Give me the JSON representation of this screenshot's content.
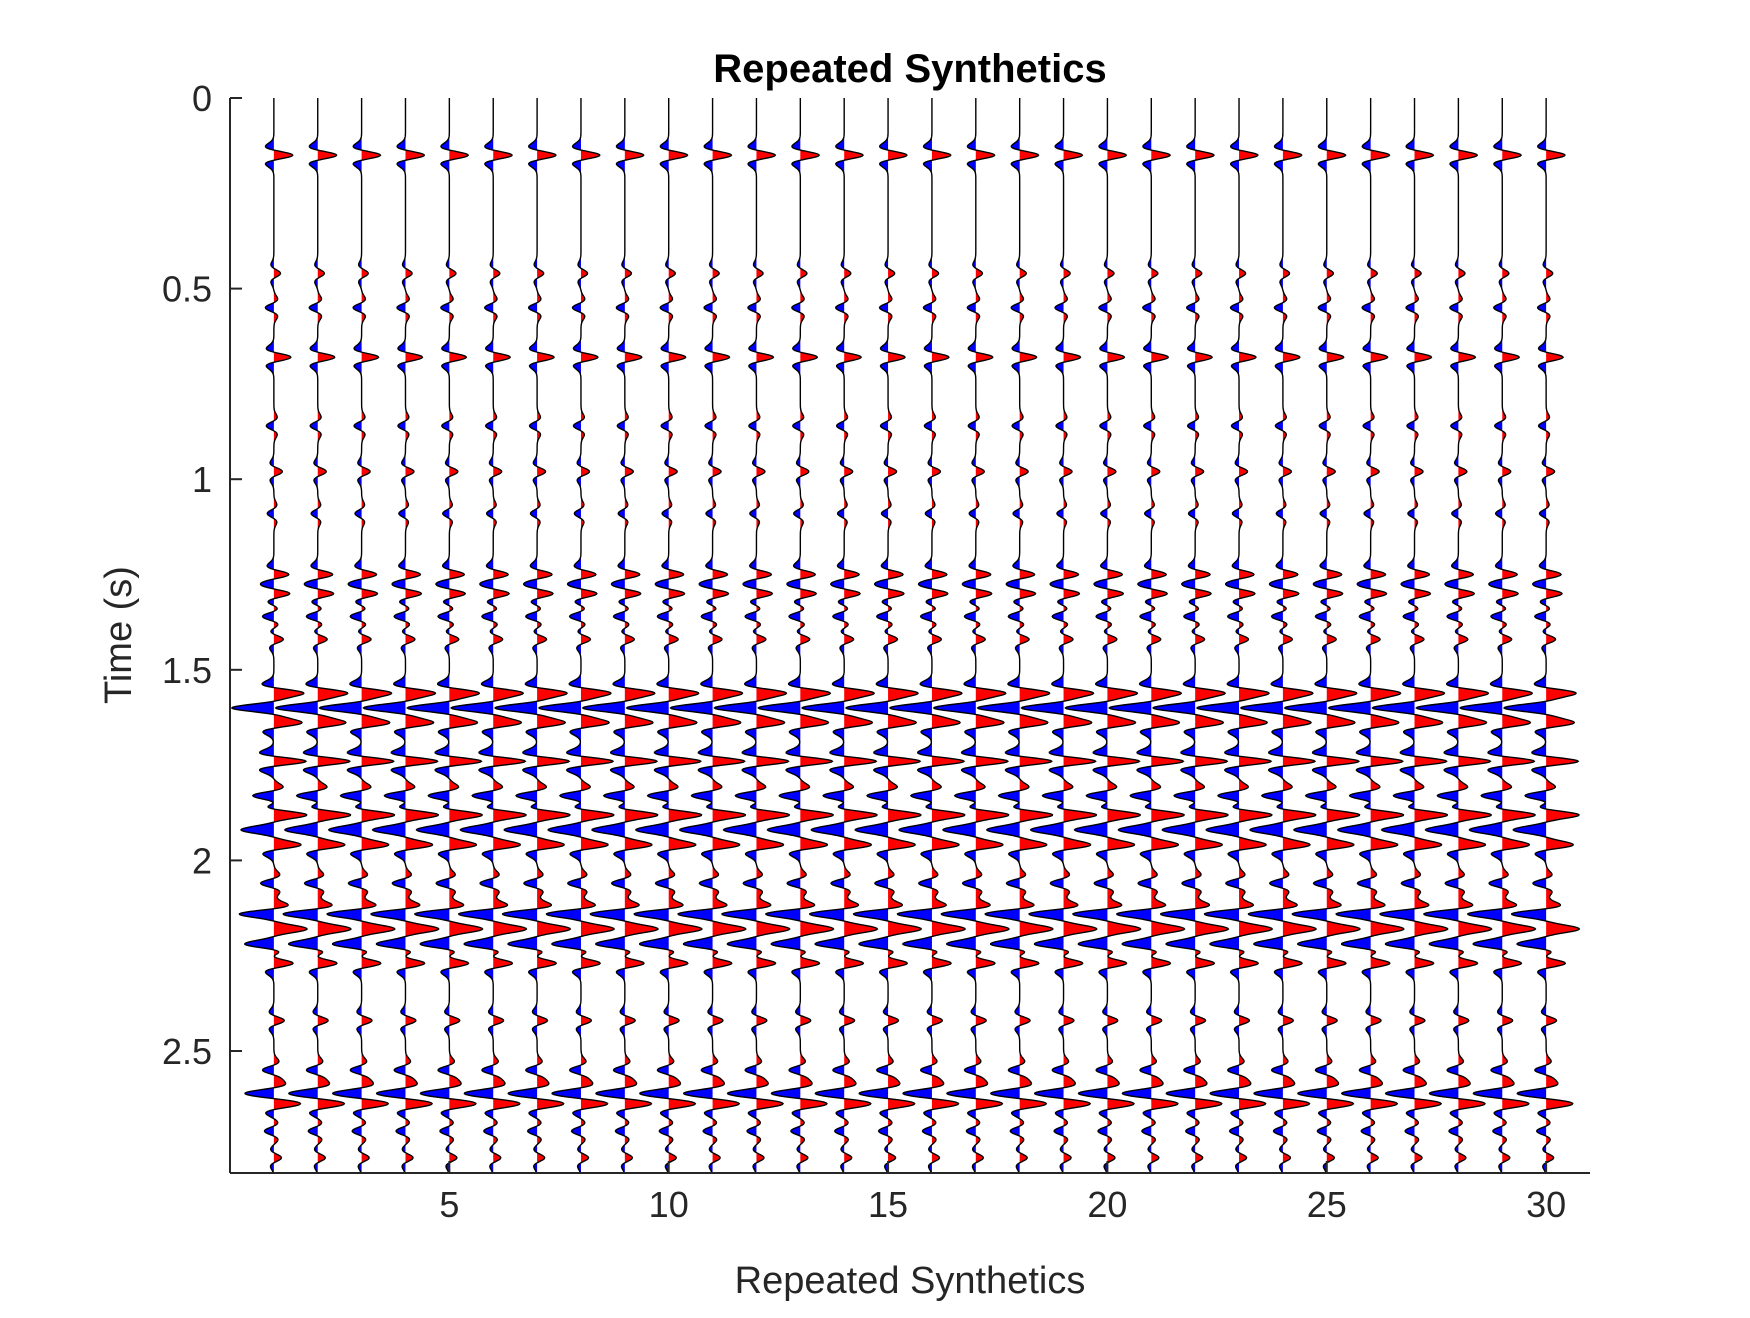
{
  "chart_data": {
    "type": "line",
    "title": "Repeated Synthetics",
    "xlabel": "Repeated Synthetics",
    "ylabel": "Time (s)",
    "xlim": [
      0,
      31
    ],
    "ylim": [
      0,
      2.82
    ],
    "y_reversed": true,
    "grid": false,
    "legend": "none",
    "x_ticks": [
      5,
      10,
      15,
      20,
      25,
      30
    ],
    "x_tick_labels": [
      "5",
      "10",
      "15",
      "20",
      "25",
      "30"
    ],
    "y_ticks": [
      0,
      0.5,
      1,
      1.5,
      2,
      2.5
    ],
    "y_tick_labels": [
      "0",
      "0.5",
      "1",
      "1.5",
      "2",
      "2.5"
    ],
    "trace_count": 30,
    "trace_positions": [
      1,
      2,
      3,
      4,
      5,
      6,
      7,
      8,
      9,
      10,
      11,
      12,
      13,
      14,
      15,
      16,
      17,
      18,
      19,
      20,
      21,
      22,
      23,
      24,
      25,
      26,
      27,
      28,
      29,
      30
    ],
    "positive_fill_color": "#ff0000",
    "negative_fill_color": "#0000ff",
    "wiggle_color": "#000000",
    "reflectivity_times": [
      0.15,
      0.46,
      0.55,
      0.68,
      0.86,
      0.98,
      1.09,
      1.25,
      1.3,
      1.36,
      1.42,
      1.56,
      1.6,
      1.64,
      1.74,
      1.83,
      1.88,
      1.92,
      1.96,
      2.06,
      2.14,
      2.18,
      2.22,
      2.27,
      2.42,
      2.55,
      2.61,
      2.64,
      2.71,
      2.78
    ],
    "reflectivity_values": [
      1.0,
      0.35,
      -0.45,
      0.9,
      -0.4,
      0.45,
      -0.35,
      0.8,
      0.85,
      -0.6,
      0.5,
      1.4,
      -2.0,
      1.3,
      1.7,
      -1.1,
      1.6,
      -1.5,
      1.3,
      -0.7,
      -1.7,
      1.5,
      -1.4,
      1.0,
      0.55,
      -0.6,
      -1.2,
      1.0,
      -0.5,
      0.4
    ]
  }
}
